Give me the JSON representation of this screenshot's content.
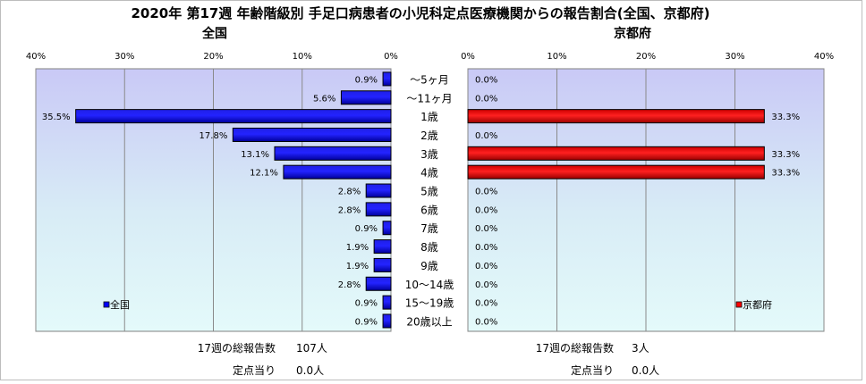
{
  "chart_data": {
    "type": "bar",
    "title": "2020年 第17週 年齢階級別 手足口病患者の小児科定点医療機関からの報告割合(全国、京都府)",
    "categories": [
      "～5ヶ月",
      "～11ヶ月",
      "1歳",
      "2歳",
      "3歳",
      "4歳",
      "5歳",
      "6歳",
      "7歳",
      "8歳",
      "9歳",
      "10～14歳",
      "15～19歳",
      "20歳以上"
    ],
    "xlim": [
      0,
      40
    ],
    "tick_labels": [
      "0%",
      "10%",
      "20%",
      "30%",
      "40%"
    ],
    "grid": true,
    "panels": [
      {
        "title": "全国",
        "series": [
          {
            "name": "全国",
            "color": "#0000ff",
            "values": [
              0.9,
              5.6,
              35.5,
              17.8,
              13.1,
              12.1,
              2.8,
              2.8,
              0.9,
              1.9,
              1.9,
              2.8,
              0.9,
              0.9
            ]
          }
        ],
        "value_labels": [
          "0.9%",
          "5.6%",
          "35.5%",
          "17.8%",
          "13.1%",
          "12.1%",
          "2.8%",
          "2.8%",
          "0.9%",
          "1.9%",
          "1.9%",
          "2.8%",
          "0.9%",
          "0.9%"
        ],
        "legend": "bottom-left",
        "total_label": "17週の総報告数",
        "total_value": "107人",
        "per_site_label": "定点当り",
        "per_site_value": "0.0人"
      },
      {
        "title": "京都府",
        "series": [
          {
            "name": "京都府",
            "color": "#ff0000",
            "values": [
              0,
              0,
              33.3,
              0,
              33.3,
              33.3,
              0,
              0,
              0,
              0,
              0,
              0,
              0,
              0
            ]
          }
        ],
        "value_labels": [
          "0.0%",
          "0.0%",
          "33.3%",
          "0.0%",
          "33.3%",
          "33.3%",
          "0.0%",
          "0.0%",
          "0.0%",
          "0.0%",
          "0.0%",
          "0.0%",
          "0.0%",
          "0.0%"
        ],
        "legend": "bottom-right",
        "total_label": "17週の総報告数",
        "total_value": "3人",
        "per_site_label": "定点当り",
        "per_site_value": "0.0人"
      }
    ]
  }
}
